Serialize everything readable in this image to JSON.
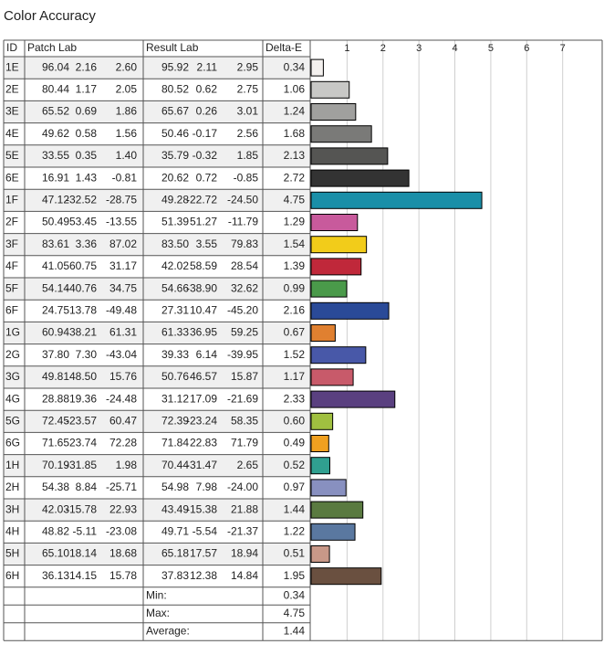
{
  "title": "Color Accuracy",
  "table": {
    "headers": [
      "ID",
      "Patch Lab",
      "Result Lab",
      "Delta-E"
    ],
    "patch": [
      [
        "96.04",
        "2.16",
        "2.60"
      ],
      [
        "80.44",
        "1.17",
        "2.05"
      ],
      [
        "65.52",
        "0.69",
        "1.86"
      ],
      [
        "49.62",
        "0.58",
        "1.56"
      ],
      [
        "33.55",
        "0.35",
        "1.40"
      ],
      [
        "16.91",
        "1.43",
        "-0.81"
      ],
      [
        "47.12",
        "-32.52",
        "-28.75"
      ],
      [
        "50.49",
        "53.45",
        "-13.55"
      ],
      [
        "83.61",
        "3.36",
        "87.02"
      ],
      [
        "41.05",
        "60.75",
        "31.17"
      ],
      [
        "54.14",
        "-40.76",
        "34.75"
      ],
      [
        "24.75",
        "13.78",
        "-49.48"
      ],
      [
        "60.94",
        "38.21",
        "61.31"
      ],
      [
        "37.80",
        "7.30",
        "-43.04"
      ],
      [
        "49.81",
        "48.50",
        "15.76"
      ],
      [
        "28.88",
        "19.36",
        "-24.48"
      ],
      [
        "72.45",
        "-23.57",
        "60.47"
      ],
      [
        "71.65",
        "23.74",
        "72.28"
      ],
      [
        "70.19",
        "-31.85",
        "1.98"
      ],
      [
        "54.38",
        "8.84",
        "-25.71"
      ],
      [
        "42.03",
        "-15.78",
        "22.93"
      ],
      [
        "48.82",
        "-5.11",
        "-23.08"
      ],
      [
        "65.10",
        "18.14",
        "18.68"
      ],
      [
        "36.13",
        "14.15",
        "15.78"
      ]
    ],
    "result": [
      [
        "95.92",
        "2.11",
        "2.95"
      ],
      [
        "80.52",
        "0.62",
        "2.75"
      ],
      [
        "65.67",
        "0.26",
        "3.01"
      ],
      [
        "50.46",
        "-0.17",
        "2.56"
      ],
      [
        "35.79",
        "-0.32",
        "1.85"
      ],
      [
        "20.62",
        "0.72",
        "-0.85"
      ],
      [
        "49.28",
        "-22.72",
        "-24.50"
      ],
      [
        "51.39",
        "51.27",
        "-11.79"
      ],
      [
        "83.50",
        "3.55",
        "79.83"
      ],
      [
        "42.02",
        "58.59",
        "28.54"
      ],
      [
        "54.66",
        "-38.90",
        "32.62"
      ],
      [
        "27.31",
        "10.47",
        "-45.20"
      ],
      [
        "61.33",
        "36.95",
        "59.25"
      ],
      [
        "39.33",
        "6.14",
        "-39.95"
      ],
      [
        "50.76",
        "46.57",
        "15.87"
      ],
      [
        "31.12",
        "17.09",
        "-21.69"
      ],
      [
        "72.39",
        "-23.24",
        "58.35"
      ],
      [
        "71.84",
        "22.83",
        "71.79"
      ],
      [
        "70.44",
        "-31.47",
        "2.65"
      ],
      [
        "54.98",
        "7.98",
        "-24.00"
      ],
      [
        "43.49",
        "-15.38",
        "21.88"
      ],
      [
        "49.71",
        "-5.54",
        "-21.37"
      ],
      [
        "65.18",
        "17.57",
        "18.94"
      ],
      [
        "37.83",
        "12.38",
        "14.84"
      ]
    ],
    "summary": [
      {
        "label": "Min:",
        "value": "0.34"
      },
      {
        "label": "Max:",
        "value": "4.75"
      },
      {
        "label": "Average:",
        "value": "1.44"
      }
    ]
  },
  "chart_data": {
    "type": "bar",
    "orientation": "horizontal",
    "categories": [
      "1E",
      "2E",
      "3E",
      "4E",
      "5E",
      "6E",
      "1F",
      "2F",
      "3F",
      "4F",
      "5F",
      "6F",
      "1G",
      "2G",
      "3G",
      "4G",
      "5G",
      "6G",
      "1H",
      "2H",
      "3H",
      "4H",
      "5H",
      "6H"
    ],
    "values": [
      0.34,
      1.06,
      1.24,
      1.68,
      2.13,
      2.72,
      4.75,
      1.29,
      1.54,
      1.39,
      0.99,
      2.16,
      0.67,
      1.52,
      1.17,
      2.33,
      0.6,
      0.49,
      0.52,
      0.97,
      1.44,
      1.22,
      0.51,
      1.95
    ],
    "value_labels": [
      "0.34",
      "1.06",
      "1.24",
      "1.68",
      "2.13",
      "2.72",
      "4.75",
      "1.29",
      "1.54",
      "1.39",
      "0.99",
      "2.16",
      "0.67",
      "1.52",
      "1.17",
      "2.33",
      "0.60",
      "0.49",
      "0.52",
      "0.97",
      "1.44",
      "1.22",
      "0.51",
      "1.95"
    ],
    "colors": [
      "#f4f1ef",
      "#c8c8c6",
      "#a0a09e",
      "#7a7a78",
      "#555553",
      "#333333",
      "#1a8fa8",
      "#c85a9c",
      "#f2cc1a",
      "#c0283a",
      "#4a9a4a",
      "#2a4a98",
      "#e08030",
      "#4858a8",
      "#c85a6a",
      "#5a4080",
      "#a0c040",
      "#f0a020",
      "#30a090",
      "#8890c0",
      "#5a7a40",
      "#5a78a0",
      "#c89888",
      "#6a5040"
    ],
    "xlim": [
      0,
      8.1
    ],
    "xticks": [
      1,
      2,
      3,
      4,
      5,
      6,
      7
    ],
    "grid": true
  }
}
